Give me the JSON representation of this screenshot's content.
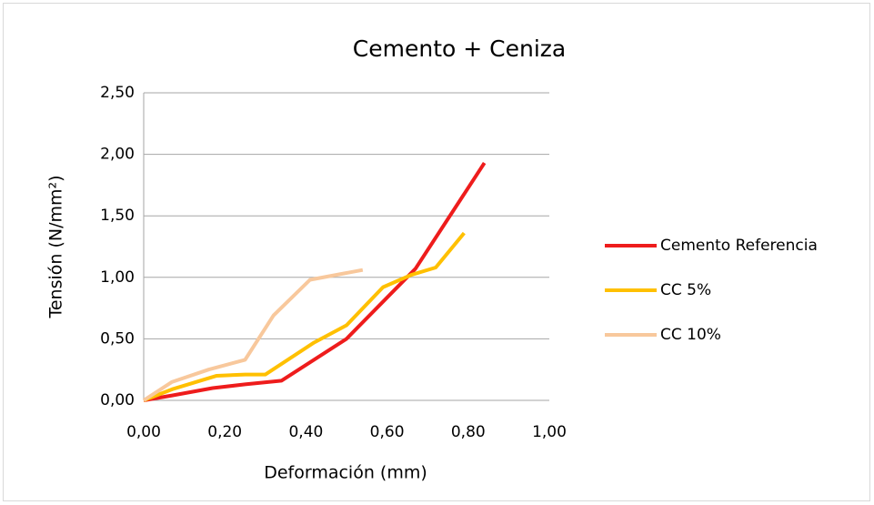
{
  "chart_data": {
    "type": "line",
    "title": "Cemento + Ceniza",
    "x_label": "Deformación (mm)",
    "y_label": "Tensión (N/mm²)",
    "series": [
      {
        "name": "Cemento Referencia",
        "color": "#ee1c1c",
        "x": [
          0,
          0.07,
          0.17,
          0.25,
          0.34,
          0.5,
          0.67,
          0.84
        ],
        "values": [
          0,
          0.04,
          0.1,
          0.13,
          0.16,
          0.5,
          1.07,
          1.93
        ]
      },
      {
        "name": "CC 5%",
        "color": "#ffc000",
        "x": [
          0,
          0.07,
          0.18,
          0.25,
          0.3,
          0.42,
          0.5,
          0.59,
          0.66,
          0.72,
          0.79
        ],
        "values": [
          0,
          0.09,
          0.2,
          0.21,
          0.21,
          0.47,
          0.61,
          0.92,
          1.02,
          1.08,
          1.36
        ]
      },
      {
        "name": "CC 10%",
        "color": "#f8c89c",
        "x": [
          0,
          0.07,
          0.16,
          0.25,
          0.32,
          0.41,
          0.54
        ],
        "values": [
          0,
          0.15,
          0.25,
          0.33,
          0.69,
          0.98,
          1.06
        ]
      }
    ],
    "xlim": [
      0,
      1
    ],
    "ylim": [
      0,
      2.5
    ],
    "xticks": [
      {
        "value": 0,
        "label": "0,00"
      },
      {
        "value": 0.2,
        "label": "0,20"
      },
      {
        "value": 0.4,
        "label": "0,40"
      },
      {
        "value": 0.6,
        "label": "0,60"
      },
      {
        "value": 0.8,
        "label": "0,80"
      },
      {
        "value": 1,
        "label": "1,00"
      }
    ],
    "yticks": [
      {
        "value": 0,
        "label": "0,00"
      },
      {
        "value": 0.5,
        "label": "0,50"
      },
      {
        "value": 1,
        "label": "1,00"
      },
      {
        "value": 1.5,
        "label": "1,50"
      },
      {
        "value": 2,
        "label": "2,00"
      },
      {
        "value": 2.5,
        "label": "2,50"
      }
    ],
    "grid": true,
    "legend": "right"
  }
}
